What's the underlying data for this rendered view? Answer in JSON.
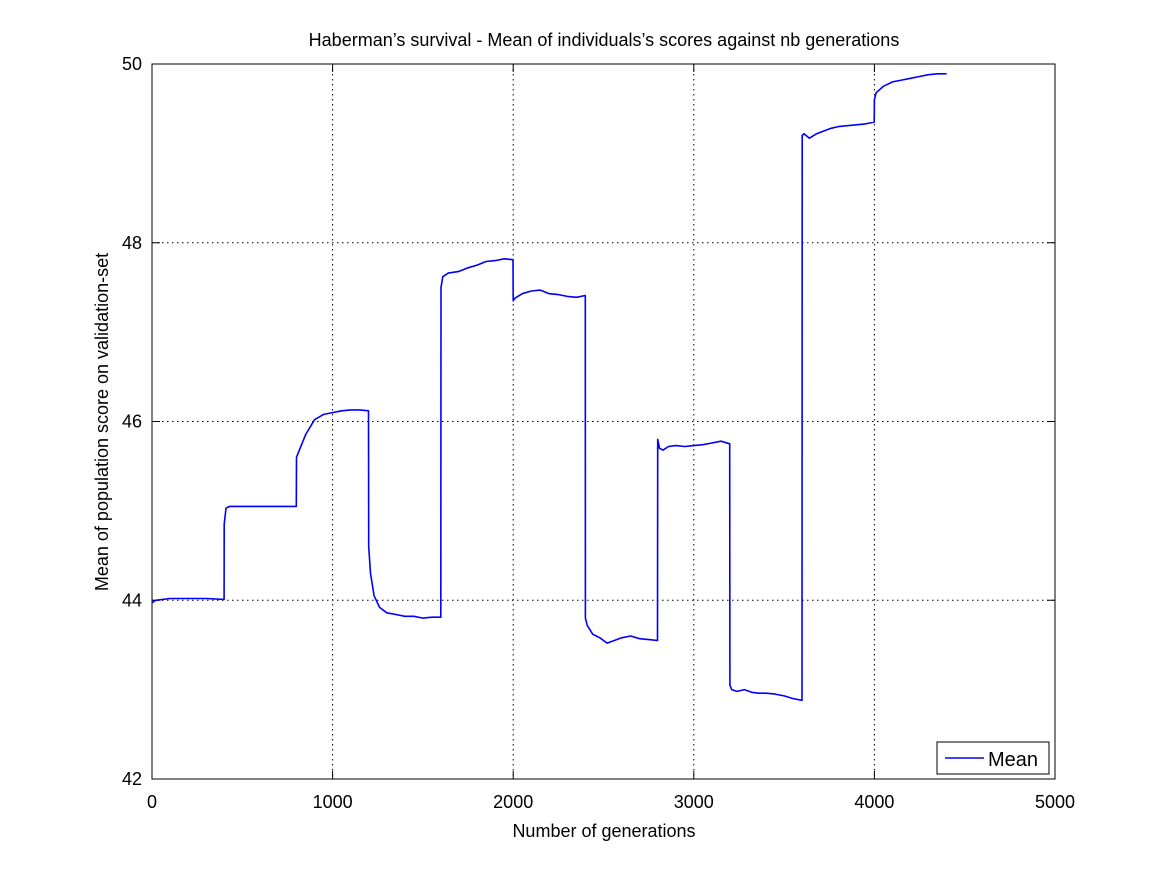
{
  "chart_data": {
    "type": "line",
    "title": "Haberman’s survival - Mean of individuals’s scores against nb generations",
    "xlabel": "Number of generations",
    "ylabel": "Mean of population score on validation-set",
    "xlim": [
      0,
      5000
    ],
    "ylim": [
      42,
      50
    ],
    "xticks": [
      0,
      1000,
      2000,
      3000,
      4000,
      5000
    ],
    "yticks": [
      42,
      44,
      46,
      48,
      50
    ],
    "grid": true,
    "legend_position": "bottom-right",
    "series": [
      {
        "name": "Mean",
        "color": "#0000ff",
        "x": [
          0,
          20,
          100,
          200,
          300,
          399,
          400,
          410,
          430,
          500,
          600,
          700,
          799,
          800,
          820,
          850,
          900,
          950,
          1000,
          1050,
          1100,
          1150,
          1199,
          1200,
          1210,
          1230,
          1260,
          1300,
          1350,
          1400,
          1450,
          1500,
          1550,
          1599,
          1600,
          1610,
          1640,
          1700,
          1750,
          1800,
          1850,
          1900,
          1950,
          1999,
          2000,
          2010,
          2050,
          2100,
          2150,
          2200,
          2250,
          2300,
          2350,
          2399,
          2400,
          2410,
          2440,
          2480,
          2520,
          2560,
          2600,
          2650,
          2700,
          2750,
          2799,
          2800,
          2810,
          2830,
          2860,
          2900,
          2950,
          3000,
          3050,
          3100,
          3150,
          3199,
          3200,
          3210,
          3240,
          3280,
          3320,
          3360,
          3400,
          3450,
          3500,
          3550,
          3599,
          3600,
          3610,
          3640,
          3680,
          3720,
          3760,
          3800,
          3850,
          3900,
          3950,
          3999,
          4000,
          4010,
          4050,
          4100,
          4150,
          4200,
          4250,
          4300,
          4350,
          4400
        ],
        "y": [
          43.97,
          44.0,
          44.02,
          44.02,
          44.02,
          44.01,
          44.85,
          45.03,
          45.05,
          45.05,
          45.05,
          45.05,
          45.05,
          45.6,
          45.7,
          45.85,
          46.02,
          46.08,
          46.1,
          46.12,
          46.13,
          46.13,
          46.12,
          44.6,
          44.3,
          44.05,
          43.92,
          43.86,
          43.84,
          43.82,
          43.82,
          43.8,
          43.81,
          43.81,
          47.5,
          47.62,
          47.66,
          47.68,
          47.72,
          47.75,
          47.79,
          47.8,
          47.82,
          47.81,
          47.35,
          47.38,
          47.43,
          47.46,
          47.47,
          47.43,
          47.42,
          47.4,
          47.39,
          47.41,
          43.8,
          43.72,
          43.62,
          43.58,
          43.52,
          43.55,
          43.58,
          43.6,
          43.57,
          43.56,
          43.55,
          45.8,
          45.7,
          45.68,
          45.72,
          45.73,
          45.72,
          45.73,
          45.74,
          45.76,
          45.78,
          45.75,
          43.05,
          43.0,
          42.98,
          43.0,
          42.97,
          42.96,
          42.96,
          42.95,
          42.93,
          42.9,
          42.88,
          49.2,
          49.22,
          49.17,
          49.22,
          49.25,
          49.28,
          49.3,
          49.31,
          49.32,
          49.33,
          49.35,
          49.6,
          49.68,
          49.75,
          49.8,
          49.82,
          49.84,
          49.86,
          49.88,
          49.89,
          49.89
        ]
      }
    ]
  }
}
